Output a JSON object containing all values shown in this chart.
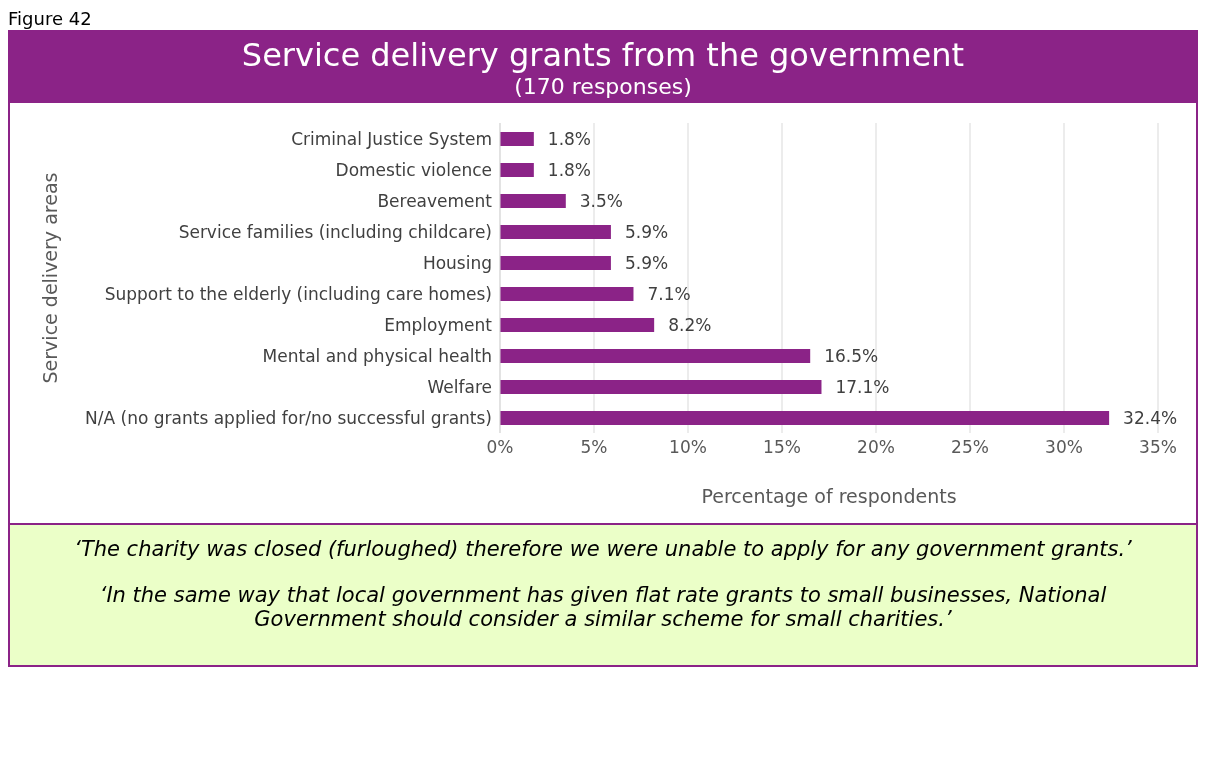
{
  "chart_data": {
    "type": "bar",
    "orientation": "horizontal",
    "title": "Service delivery grants from the government",
    "subtitle": "(170 responses)",
    "xlabel": "Percentage of respondents",
    "ylabel": "Service delivery areas",
    "categories": [
      "Criminal Justice System",
      "Domestic violence",
      "Bereavement",
      "Service families (including childcare)",
      "Housing",
      "Support to the elderly (including care homes)",
      "Employment",
      "Mental and physical health",
      "Welfare",
      "N/A (no grants applied for/no successful grants)"
    ],
    "values": [
      1.8,
      1.8,
      3.5,
      5.9,
      5.9,
      7.1,
      8.2,
      16.5,
      17.1,
      32.4
    ],
    "value_labels": [
      "1.8%",
      "1.8%",
      "3.5%",
      "5.9%",
      "5.9%",
      "7.1%",
      "8.2%",
      "16.5%",
      "17.1%",
      "32.4%"
    ],
    "color": "#8b2387",
    "xlim": [
      0,
      35
    ],
    "xticks": [
      {
        "value": 0,
        "label": "0%"
      },
      {
        "value": 5,
        "label": "5%"
      },
      {
        "value": 10,
        "label": "10%"
      },
      {
        "value": 15,
        "label": "15%"
      },
      {
        "value": 20,
        "label": "20%"
      },
      {
        "value": 25,
        "label": "25%"
      },
      {
        "value": 30,
        "label": "30%"
      },
      {
        "value": 35,
        "label": "35%"
      }
    ],
    "grid": "x",
    "legend": false,
    "annotations": [
      "Figure 42",
      "‘The charity was closed (furloughed) therefore we were unable to apply for any government grants.’",
      "‘In the same way that local government has given flat rate grants to small businesses, National Government should consider a similar scheme for small charities.’"
    ]
  }
}
